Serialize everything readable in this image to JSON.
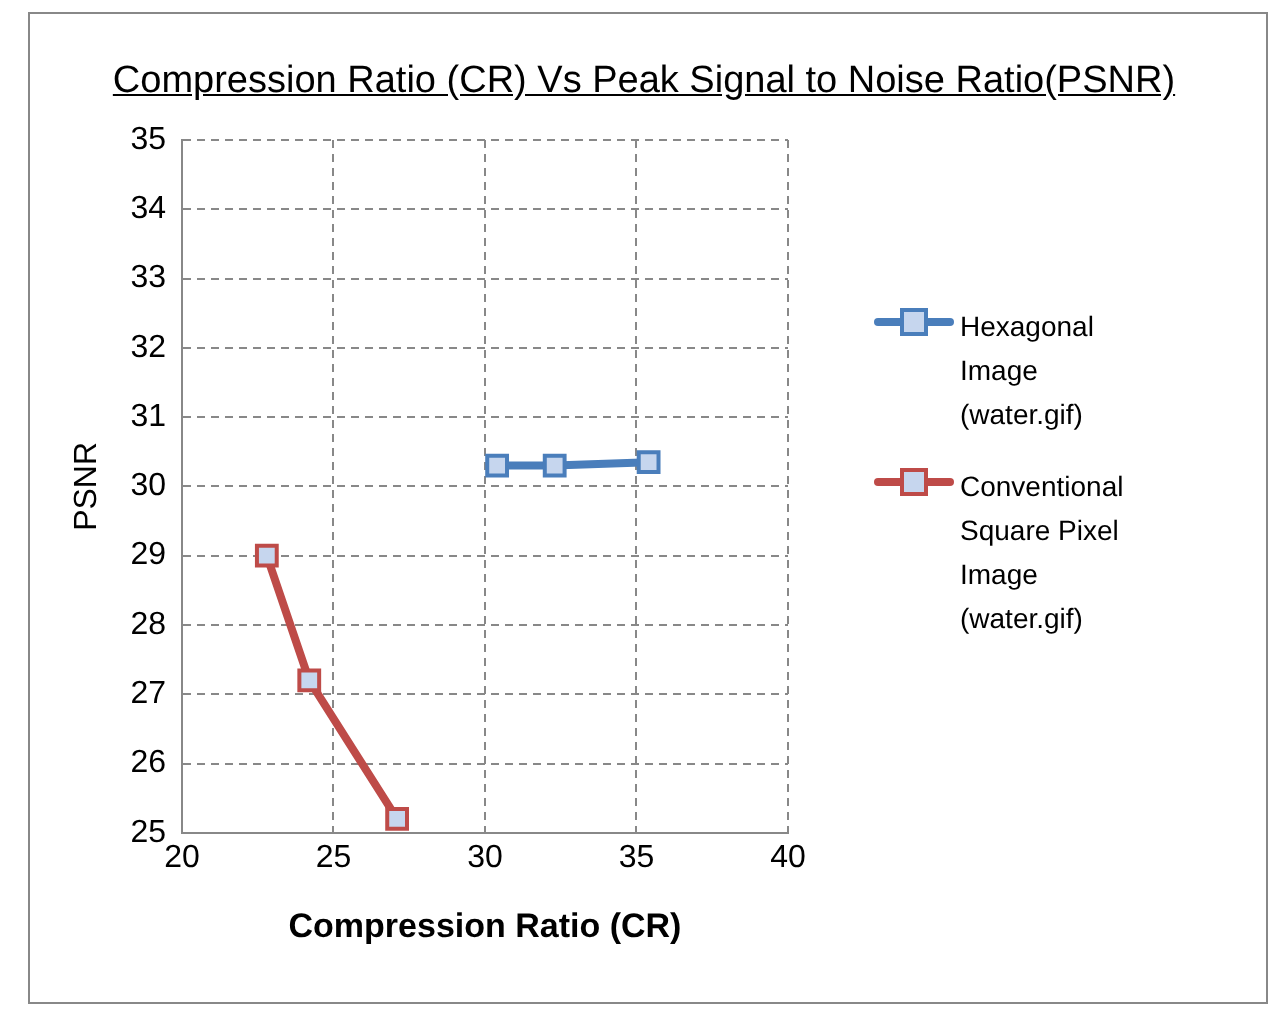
{
  "chart_data": {
    "type": "line",
    "title": "Compression Ratio (CR) Vs Peak Signal to Noise Ratio(PSNR)",
    "xlabel": "Compression Ratio (CR)",
    "ylabel": "PSNR",
    "series": [
      {
        "name": "Hexagonal Image (water.gif)",
        "color": "#4a7ebb",
        "x": [
          30.4,
          32.3,
          35.4
        ],
        "values": [
          30.3,
          30.3,
          30.35
        ]
      },
      {
        "name": "Conventional Square Pixel Image (water.gif)",
        "color": "#be4b48",
        "x": [
          22.8,
          24.2,
          27.1
        ],
        "values": [
          29.0,
          27.2,
          25.2
        ]
      }
    ],
    "xlim": [
      20,
      40
    ],
    "xticks": [
      20,
      25,
      30,
      35,
      40
    ],
    "ylim": [
      25,
      35
    ],
    "yticks": [
      25,
      26,
      27,
      28,
      29,
      30,
      31,
      32,
      33,
      34,
      35
    ],
    "grid": true,
    "legend": "right",
    "marker": "square",
    "line_style": "solid"
  }
}
